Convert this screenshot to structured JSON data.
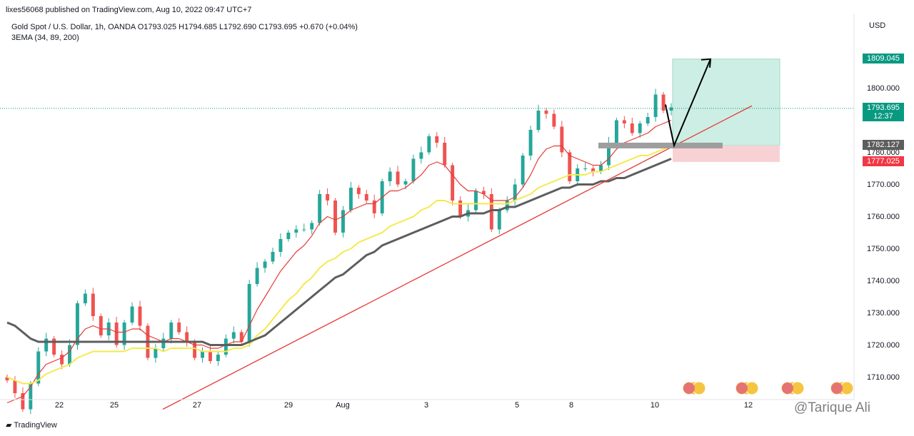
{
  "header": {
    "publish_text": "lixes56068 published on TradingView.com, Aug 10, 2022 09:47 UTC+7",
    "symbol_line": "Gold Spot / U.S. Dollar, 1h, OANDA O1793.025 H1794.685 L1792.690 C1793.695 +0.670 (+0.04%)",
    "indicator_line": "3EMA (34, 89, 200)",
    "currency": "USD"
  },
  "footer": {
    "logo_text": "TradingView",
    "watermark": "@Tarique Ali"
  },
  "colors": {
    "up": "#26a69a",
    "down": "#ef5350",
    "ema34": "#e53935",
    "ema89": "#f5e94a",
    "ema200": "#5d5d5d",
    "trendline": "#e53935",
    "profit_zone": "#cdeee4",
    "loss_zone": "#f8d1d4"
  },
  "chart_data": {
    "type": "candlestick",
    "timeframe": "1h",
    "x_ticks": [
      "22",
      "25",
      "27",
      "29",
      "Aug",
      "3",
      "5",
      "8",
      "10",
      "12"
    ],
    "y_ticks": [
      1710,
      1720,
      1730,
      1740,
      1750,
      1760,
      1770,
      1780,
      1800
    ],
    "ylim": [
      1703,
      1823
    ],
    "price_tags": [
      {
        "label": "1809.045",
        "value": 1809.045,
        "color": "#089981"
      },
      {
        "label": "1793.695",
        "value": 1793.695,
        "color": "#089981",
        "sub": "12:37"
      },
      {
        "label": "1782.127",
        "value": 1782.127,
        "color": "#5d5d5d"
      },
      {
        "label": "1777.025",
        "value": 1777.025,
        "color": "#f23645"
      }
    ],
    "ohlc_closes": [
      1709,
      1705,
      1700,
      1708,
      1718,
      1722,
      1717,
      1714,
      1720,
      1733,
      1736,
      1729,
      1723,
      1727,
      1720,
      1727,
      1732,
      1726,
      1716,
      1719,
      1722,
      1727,
      1724,
      1721,
      1716,
      1718,
      1715,
      1717,
      1722,
      1724,
      1721,
      1739,
      1744,
      1746,
      1749,
      1753,
      1755,
      1756,
      1756,
      1758,
      1767,
      1765,
      1755,
      1762,
      1769,
      1767,
      1765,
      1761,
      1771,
      1774,
      1770,
      1771,
      1778,
      1780,
      1785,
      1783,
      1776,
      1765,
      1760,
      1762,
      1768,
      1767,
      1756,
      1762,
      1765,
      1770,
      1779,
      1787,
      1793,
      1792,
      1788,
      1780,
      1771,
      1775,
      1775,
      1774,
      1776,
      1783,
      1790,
      1789,
      1786,
      1789,
      1791,
      1798,
      1793,
      1794
    ],
    "series": [
      {
        "name": "EMA 34",
        "values": [
          1702,
          1703,
          1704,
          1707,
          1711,
          1714,
          1715,
          1716,
          1718,
          1722,
          1725,
          1726,
          1725,
          1725,
          1724,
          1724,
          1725,
          1725,
          1723,
          1722,
          1721,
          1722,
          1722,
          1721,
          1720,
          1720,
          1719,
          1719,
          1720,
          1721,
          1721,
          1726,
          1731,
          1735,
          1739,
          1743,
          1746,
          1749,
          1751,
          1754,
          1758,
          1760,
          1759,
          1760,
          1762,
          1763,
          1764,
          1764,
          1766,
          1768,
          1768,
          1769,
          1771,
          1773,
          1776,
          1777,
          1776,
          1773,
          1770,
          1768,
          1768,
          1767,
          1765,
          1765,
          1765,
          1766,
          1769,
          1773,
          1778,
          1781,
          1782,
          1782,
          1779,
          1778,
          1777,
          1776,
          1776,
          1778,
          1781,
          1783,
          1784,
          1785,
          1786,
          1788,
          1789,
          1790
        ]
      },
      {
        "name": "EMA 89",
        "values": [
          1710,
          1709,
          1708,
          1708,
          1709,
          1711,
          1712,
          1713,
          1714,
          1716,
          1717,
          1718,
          1718,
          1718,
          1718,
          1718,
          1719,
          1719,
          1719,
          1719,
          1718,
          1719,
          1719,
          1719,
          1719,
          1718,
          1718,
          1718,
          1718,
          1719,
          1719,
          1720,
          1723,
          1725,
          1728,
          1731,
          1734,
          1736,
          1739,
          1741,
          1744,
          1746,
          1747,
          1749,
          1750,
          1752,
          1753,
          1754,
          1755,
          1757,
          1758,
          1759,
          1760,
          1762,
          1763,
          1765,
          1765,
          1764,
          1764,
          1764,
          1764,
          1764,
          1764,
          1764,
          1764,
          1765,
          1766,
          1767,
          1769,
          1770,
          1771,
          1772,
          1773,
          1773,
          1773,
          1774,
          1774,
          1775,
          1776,
          1777,
          1778,
          1779,
          1779,
          1780,
          1781,
          1782
        ]
      },
      {
        "name": "EMA 200",
        "values": [
          1727,
          1726,
          1724,
          1722,
          1721,
          1721,
          1721,
          1721,
          1721,
          1721,
          1721,
          1721,
          1721,
          1721,
          1721,
          1721,
          1721,
          1721,
          1721,
          1721,
          1721,
          1721,
          1721,
          1721,
          1721,
          1721,
          1720,
          1720,
          1720,
          1720,
          1720,
          1721,
          1722,
          1723,
          1725,
          1727,
          1729,
          1731,
          1733,
          1735,
          1737,
          1739,
          1741,
          1742,
          1744,
          1746,
          1748,
          1749,
          1751,
          1752,
          1753,
          1754,
          1755,
          1756,
          1757,
          1758,
          1759,
          1760,
          1760,
          1761,
          1761,
          1761,
          1762,
          1762,
          1763,
          1763,
          1764,
          1765,
          1766,
          1767,
          1768,
          1769,
          1769,
          1770,
          1770,
          1770,
          1771,
          1771,
          1772,
          1772,
          1773,
          1774,
          1775,
          1776,
          1777,
          1778
        ]
      }
    ],
    "trendline": {
      "from": 1700,
      "to": 1794.5
    },
    "position": {
      "entry": 1782.127,
      "stop": 1777.025,
      "target": 1809.045
    }
  }
}
